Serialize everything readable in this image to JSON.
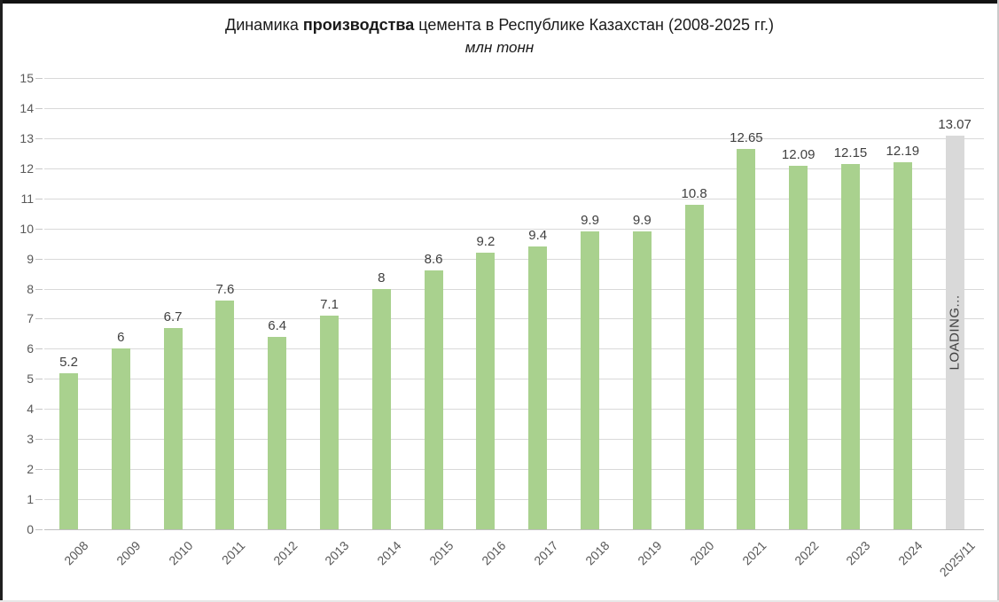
{
  "header": {
    "title_prefix": "Динамика ",
    "title_bold": "производства",
    "title_suffix": " цемента в Республике Казахстан (2008-2025 гг.)",
    "subtitle": "млн тонн"
  },
  "chart_data": {
    "type": "bar",
    "title": "Динамика производства цемента в Республике Казахстан (2008-2025 гг.)",
    "subtitle": "млн тонн",
    "xlabel": "",
    "ylabel": "млн тонн",
    "categories": [
      "2008",
      "2009",
      "2010",
      "2011",
      "2012",
      "2013",
      "2014",
      "2015",
      "2016",
      "2017",
      "2018",
      "2019",
      "2020",
      "2021",
      "2022",
      "2023",
      "2024",
      "2025/11"
    ],
    "values": [
      5.2,
      6,
      6.7,
      7.6,
      6.4,
      7.1,
      8,
      8.6,
      9.2,
      9.4,
      9.9,
      9.9,
      10.8,
      12.65,
      12.09,
      12.15,
      12.19,
      13.07
    ],
    "value_labels": [
      "5.2",
      "6",
      "6.7",
      "7.6",
      "6.4",
      "7.1",
      "8",
      "8.6",
      "9.2",
      "9.4",
      "9.9",
      "9.9",
      "10.8",
      "12.65",
      "12.09",
      "12.15",
      "12.19",
      "13.07"
    ],
    "ylim": [
      0,
      15
    ],
    "yticks": [
      0,
      1,
      2,
      3,
      4,
      5,
      6,
      7,
      8,
      9,
      10,
      11,
      12,
      13,
      14,
      15
    ],
    "grid": true,
    "legend": "none",
    "bar_color": "#a9d18e",
    "last_bar_color": "#d9d9d9",
    "last_bar_annotation": "LOADING...",
    "gridline_color": "#d9d9d9",
    "axis_line_color": "#bfbfbf",
    "axis_text_color": "#595959",
    "value_label_color": "#404040"
  }
}
